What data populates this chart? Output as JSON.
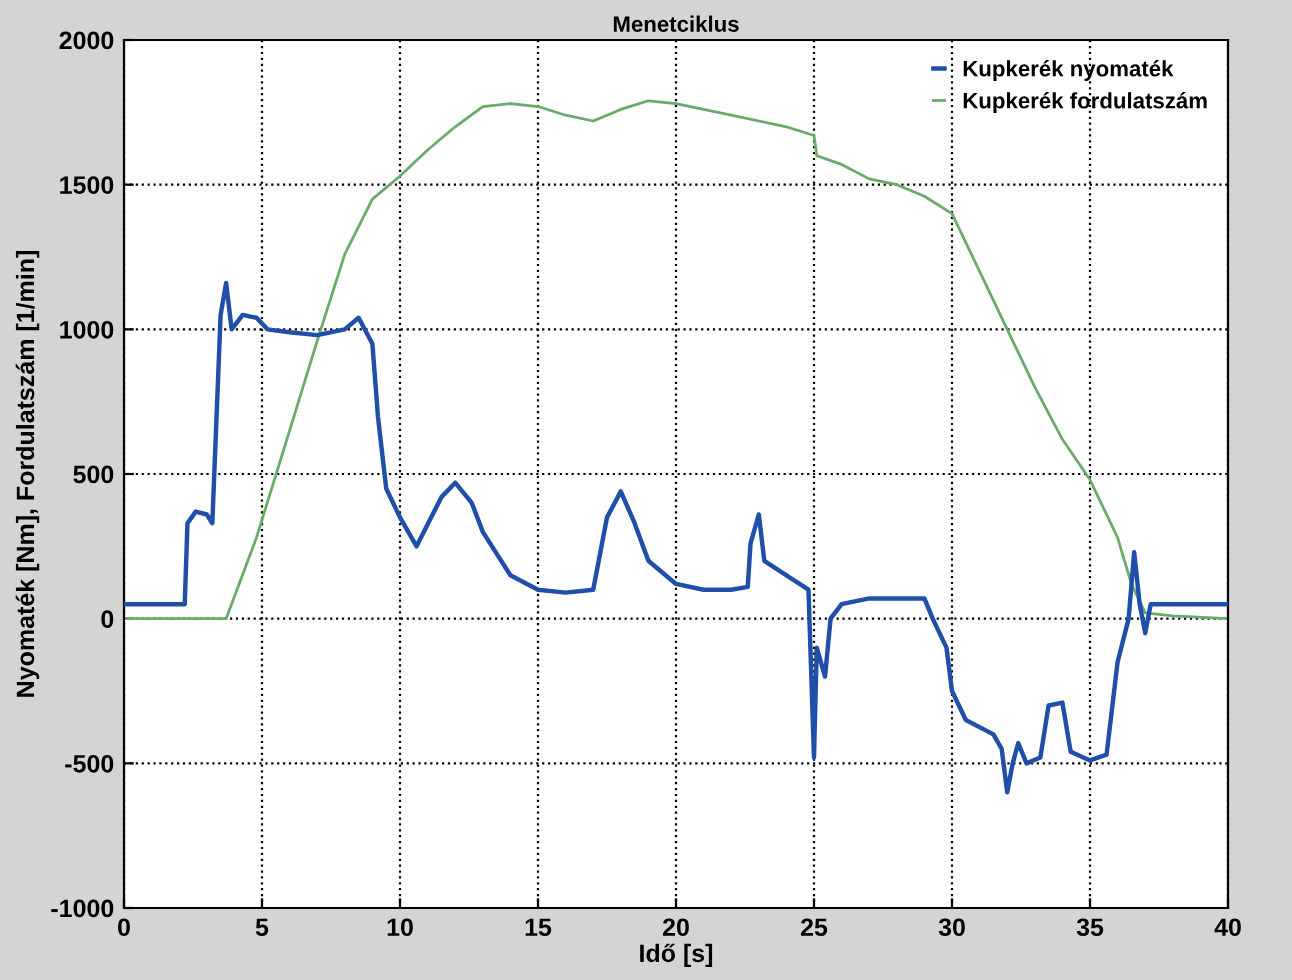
{
  "chart_data": {
    "type": "line",
    "title": "Menetciklus",
    "xlabel": "Idő [s]",
    "ylabel": "Nyomaték [Nm], Fordulatszám [1/min]",
    "xlim": [
      0,
      40
    ],
    "xticks": [
      0,
      5,
      10,
      15,
      20,
      25,
      30,
      35,
      40
    ],
    "ylim": [
      -1000,
      2000
    ],
    "yticks": [
      -1000,
      -500,
      0,
      500,
      1000,
      1500,
      2000
    ],
    "grid": true,
    "legend": "top right",
    "line_style": "solid",
    "marker": "none",
    "series": [
      {
        "name": "Kupkerék nyomaték",
        "color": "#1f4fa8",
        "x": [
          0,
          2.2,
          2.3,
          2.6,
          3.0,
          3.2,
          3.5,
          3.7,
          3.9,
          4.3,
          4.8,
          5.2,
          6,
          7,
          8,
          8.5,
          9,
          9.2,
          9.5,
          10,
          10.6,
          11.5,
          12,
          12.6,
          13,
          14,
          15,
          16,
          17,
          17.5,
          18,
          18.5,
          19,
          20,
          21,
          22,
          22.6,
          22.7,
          23.0,
          23.2,
          24,
          24.8,
          25.0,
          25.1,
          25.4,
          25.6,
          26,
          27,
          28,
          29,
          29.3,
          29.8,
          30,
          30.5,
          31.5,
          31.8,
          32.0,
          32.2,
          32.4,
          32.7,
          33.2,
          33.5,
          34.0,
          34.3,
          35.0,
          35.6,
          36.0,
          36.4,
          36.6,
          36.8,
          37,
          37.2,
          37.5,
          40
        ],
        "values": [
          50,
          50,
          330,
          370,
          360,
          330,
          1050,
          1160,
          1000,
          1050,
          1040,
          1000,
          990,
          980,
          1000,
          1040,
          950,
          700,
          450,
          350,
          250,
          420,
          470,
          400,
          300,
          150,
          100,
          90,
          100,
          350,
          440,
          330,
          200,
          120,
          100,
          100,
          110,
          260,
          360,
          200,
          150,
          100,
          -480,
          -100,
          -200,
          0,
          50,
          70,
          70,
          70,
          0,
          -100,
          -250,
          -350,
          -400,
          -450,
          -600,
          -500,
          -430,
          -500,
          -480,
          -300,
          -290,
          -460,
          -490,
          -470,
          -150,
          0,
          230,
          50,
          -50,
          50,
          50,
          50
        ]
      },
      {
        "name": "Kupkerék fordulatszám",
        "color": "#6aaa6a",
        "x": [
          0,
          3.7,
          4.8,
          6,
          7,
          8,
          9,
          10,
          11,
          12,
          13,
          14,
          15,
          16,
          17,
          18,
          19,
          20,
          21,
          22,
          23,
          24,
          25,
          25.1,
          26,
          27,
          28,
          29,
          30,
          31,
          32,
          33,
          34,
          35,
          36,
          36.5,
          37,
          38,
          40
        ],
        "values": [
          0,
          0,
          280,
          650,
          960,
          1260,
          1450,
          1530,
          1620,
          1700,
          1770,
          1780,
          1770,
          1740,
          1720,
          1760,
          1790,
          1780,
          1760,
          1740,
          1720,
          1700,
          1670,
          1600,
          1570,
          1520,
          1500,
          1460,
          1400,
          1200,
          1000,
          800,
          620,
          480,
          280,
          120,
          20,
          10,
          0
        ]
      }
    ]
  }
}
